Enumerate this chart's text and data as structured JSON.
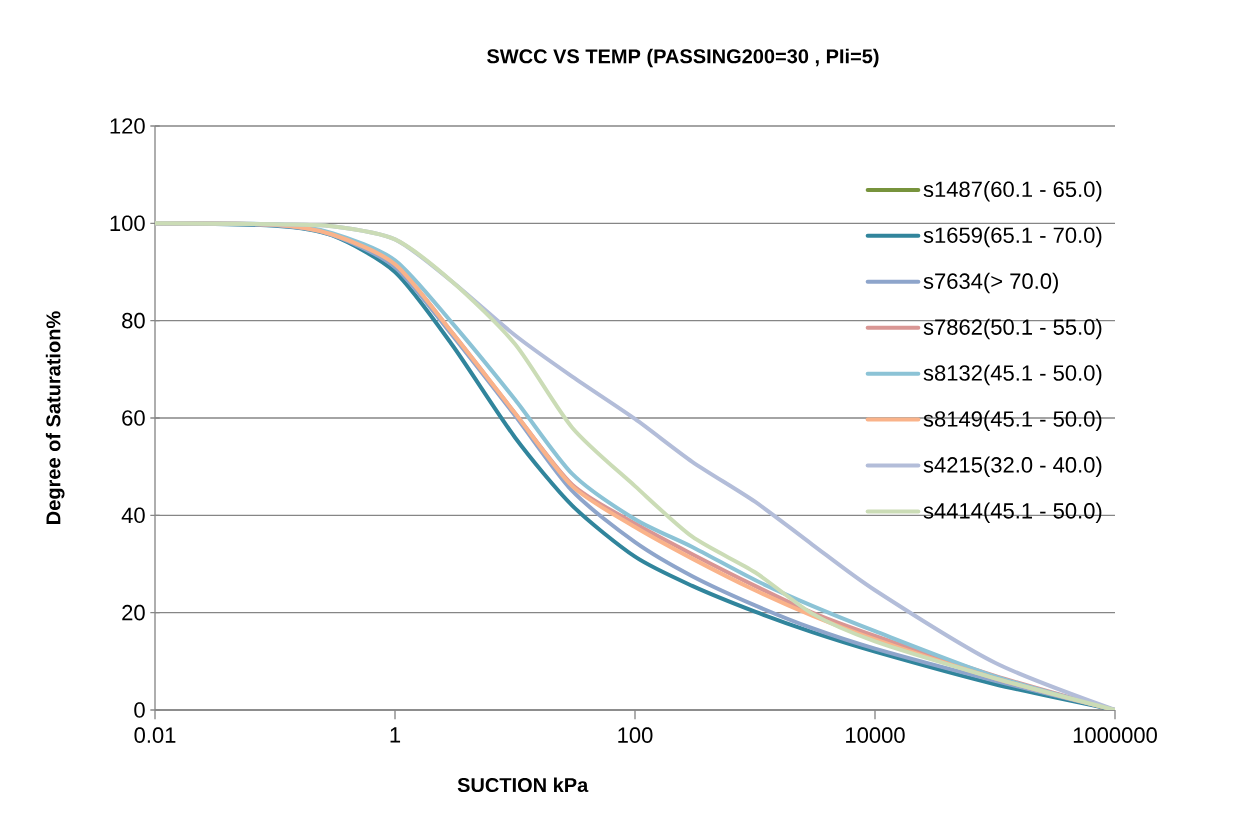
{
  "chart_data": {
    "type": "line",
    "title": "SWCC VS TEMP (PASSING200=30 , PIi=5)",
    "xlabel": "SUCTION kPa",
    "ylabel": "Degree of Saturation%",
    "x": [
      0.01,
      0.1,
      0.3,
      1,
      3,
      10,
      30,
      100,
      300,
      1000,
      3000,
      10000,
      100000,
      1000000
    ],
    "series": [
      {
        "name": "s1487(60.1 - 65.0)",
        "color": "#77933c",
        "values": [
          null,
          null,
          null,
          null,
          null,
          null,
          null,
          null,
          null,
          null,
          null,
          null,
          null,
          null
        ]
      },
      {
        "name": "s1659(65.1 - 70.0)",
        "color": "#31859c",
        "values": [
          100,
          99.5,
          97.5,
          90,
          75,
          56,
          42,
          31.5,
          25.5,
          20.2,
          16,
          12,
          5.3,
          0
        ]
      },
      {
        "name": "s7634(> 70.0)",
        "color": "#8ea5cb",
        "values": [
          100,
          99.6,
          97.6,
          91,
          77,
          60.5,
          45,
          34.5,
          27.5,
          21.5,
          16.8,
          12.6,
          6,
          0
        ]
      },
      {
        "name": "s7862(50.1 - 55.0)",
        "color": "#d99694",
        "values": [
          100,
          99.7,
          97.8,
          91.6,
          77.5,
          61,
          46.3,
          38.3,
          32,
          25.5,
          20,
          15.2,
          7,
          0
        ]
      },
      {
        "name": "s8132(45.1 - 50.0)",
        "color": "#8cc3d6",
        "values": [
          100,
          99.8,
          98,
          92.4,
          79.5,
          63.8,
          48.5,
          39.2,
          33.5,
          26.7,
          21.4,
          16.2,
          6.9,
          0
        ]
      },
      {
        "name": "s8149(45.1 - 50.0)",
        "color": "#fab38a",
        "values": [
          100,
          99.7,
          97.7,
          91.6,
          77.5,
          61,
          46,
          37.6,
          31.1,
          24.6,
          19.4,
          14.5,
          6.5,
          0
        ]
      },
      {
        "name": "s4215(32.0 - 40.0)",
        "color": "#b3bdd9",
        "values": [
          100,
          99.8,
          99.4,
          96.7,
          88,
          77,
          68.5,
          59.8,
          51,
          42.8,
          34,
          24.6,
          9.7,
          0
        ]
      },
      {
        "name": "s4414(45.1 - 50.0)",
        "color": "#cbdcb6",
        "values": [
          100,
          99.8,
          99.4,
          96.7,
          88,
          75.2,
          58,
          46,
          35.6,
          28.3,
          19.8,
          14.1,
          6.5,
          0
        ]
      }
    ],
    "xlim": [
      0.01,
      1000000
    ],
    "xticks": [
      0.01,
      1,
      100,
      10000,
      1000000
    ],
    "ylim": [
      0,
      120
    ],
    "yticks": [
      0,
      20,
      40,
      60,
      80,
      100,
      120
    ],
    "log": "x",
    "grid": "y",
    "legend": "right",
    "line_style": "solid"
  }
}
